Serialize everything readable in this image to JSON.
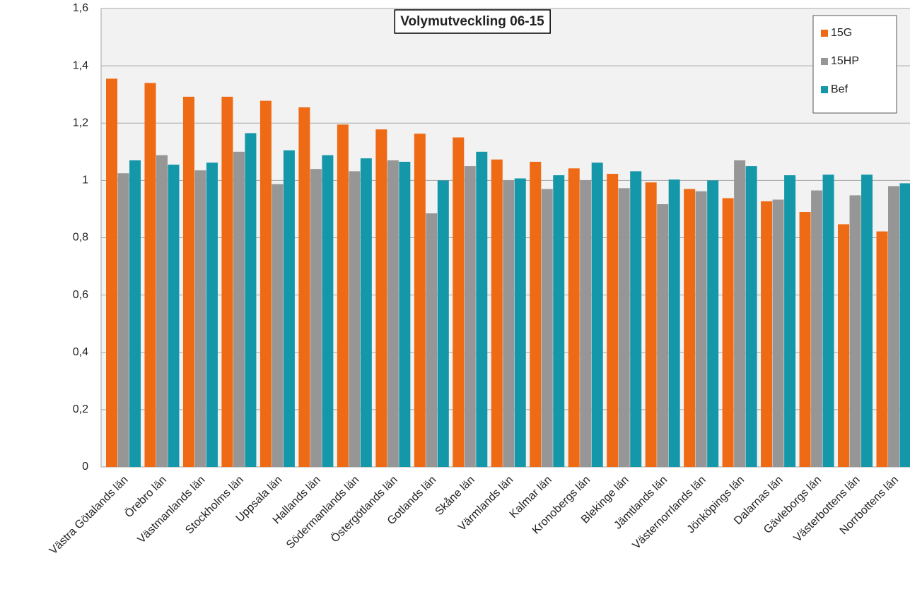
{
  "chart_data": {
    "type": "bar",
    "title": "Volymutveckling  06-15",
    "categories": [
      "Västra Götalands län",
      "Örebro län",
      "Västmanlands län",
      "Stockholms län",
      "Uppsala län",
      "Hallands län",
      "Södermanlands län",
      "Östergötlands län",
      "Gotlands län",
      "Skåne län",
      "Värmlands län",
      "Kalmar län",
      "Kronobergs län",
      "Blekinge län",
      "Jämtlands län",
      "Västernorrlands län",
      "Jönköpings län",
      "Dalarnas län",
      "Gävleborgs län",
      "Västerbottens län",
      "Norrbottens län"
    ],
    "series": [
      {
        "name": "15G",
        "color": "#ee6a14",
        "values": [
          1.355,
          1.34,
          1.292,
          1.292,
          1.278,
          1.255,
          1.195,
          1.178,
          1.163,
          1.15,
          1.073,
          1.065,
          1.042,
          1.023,
          0.993,
          0.97,
          0.938,
          0.927,
          0.89,
          0.847,
          0.822
        ]
      },
      {
        "name": "15HP",
        "color": "#969696",
        "values": [
          1.025,
          1.088,
          1.035,
          1.1,
          0.987,
          1.04,
          1.032,
          1.07,
          0.885,
          1.05,
          1.0,
          0.97,
          1.0,
          0.973,
          0.917,
          0.962,
          1.07,
          0.933,
          0.965,
          0.948,
          0.98
        ]
      },
      {
        "name": "Bef",
        "color": "#1597aa",
        "values": [
          1.07,
          1.055,
          1.062,
          1.165,
          1.105,
          1.088,
          1.077,
          1.065,
          1.0,
          1.1,
          1.007,
          1.018,
          1.062,
          1.032,
          1.003,
          1.0,
          1.05,
          1.018,
          1.02,
          1.02,
          0.99
        ]
      }
    ],
    "ylim": [
      0,
      1.6
    ],
    "yticks": [
      0,
      {
        "value": 0.2,
        "label": "0,2"
      },
      {
        "value": 0.4,
        "label": "0,4"
      },
      {
        "value": 0.6,
        "label": "0,6"
      },
      {
        "value": 0.8,
        "label": "0,8"
      },
      1,
      {
        "value": 1.2,
        "label": "1,2"
      },
      {
        "value": 1.4,
        "label": "1,4"
      },
      {
        "value": 1.6,
        "label": "1,6"
      }
    ],
    "grid": true,
    "legend": "top-right"
  }
}
